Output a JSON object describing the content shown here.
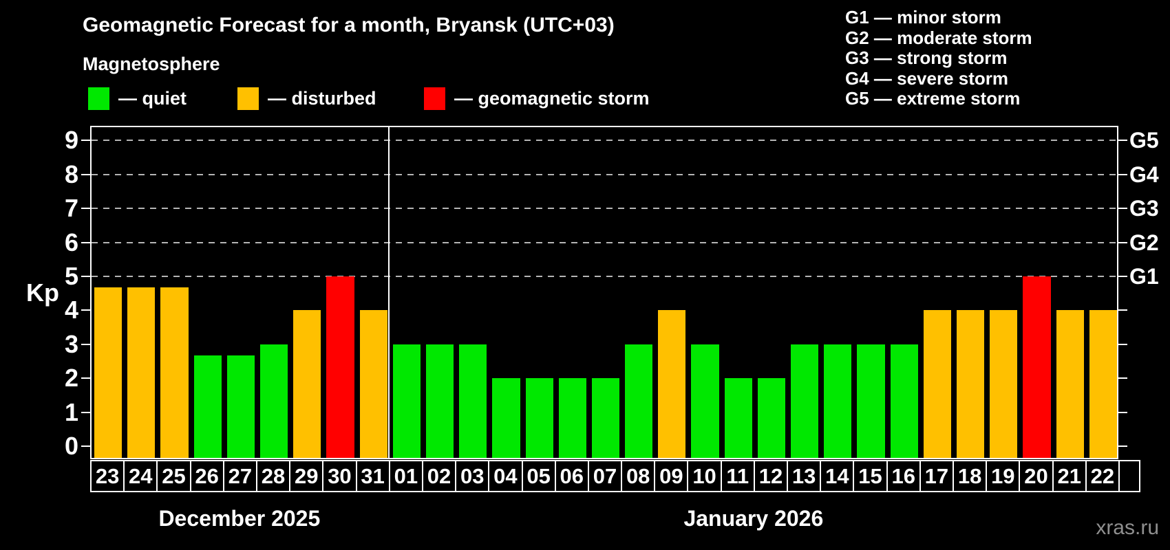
{
  "header": {
    "title": "Geomagnetic Forecast for a month, Bryansk (UTC+03)",
    "subtitle": "Magnetosphere",
    "legend": [
      {
        "name": "quiet",
        "color": "#00e800",
        "label": "— quiet"
      },
      {
        "name": "disturbed",
        "color": "#ffc000",
        "label": "— disturbed"
      },
      {
        "name": "storm",
        "color": "#ff0000",
        "label": "— geomagnetic storm"
      }
    ],
    "g_scale_legend": [
      "G1 — minor storm",
      "G2 — moderate storm",
      "G3 — strong storm",
      "G4 — severe storm",
      "G5 — extreme storm"
    ]
  },
  "chart_data": {
    "type": "bar",
    "title": "Geomagnetic Forecast for a month, Bryansk (UTC+03)",
    "subtitle": "Magnetosphere",
    "ylabel": "Kp",
    "ylim": [
      0,
      9.4
    ],
    "y_ticks": [
      0,
      1,
      2,
      3,
      4,
      5,
      6,
      7,
      8,
      9
    ],
    "gridlines_at": [
      5,
      6,
      7,
      8,
      9
    ],
    "grid_style": "dashed horizontal lines at Kp 5-9 (storm levels G1-G5)",
    "legend_position": "top-left",
    "right_axis_labels": [
      {
        "kp": 5,
        "label": "G1"
      },
      {
        "kp": 6,
        "label": "G2"
      },
      {
        "kp": 7,
        "label": "G3"
      },
      {
        "kp": 8,
        "label": "G4"
      },
      {
        "kp": 9,
        "label": "G5"
      }
    ],
    "colors": {
      "quiet": "#00e800",
      "disturbed": "#ffc000",
      "storm": "#ff0000"
    },
    "months": [
      {
        "key": "dec",
        "label": "December 2025",
        "days": [
          {
            "date": "23",
            "kp": 4.67,
            "status": "disturbed"
          },
          {
            "date": "24",
            "kp": 4.67,
            "status": "disturbed"
          },
          {
            "date": "25",
            "kp": 4.67,
            "status": "disturbed"
          },
          {
            "date": "26",
            "kp": 2.67,
            "status": "quiet"
          },
          {
            "date": "27",
            "kp": 2.67,
            "status": "quiet"
          },
          {
            "date": "28",
            "kp": 3,
            "status": "quiet"
          },
          {
            "date": "29",
            "kp": 4,
            "status": "disturbed"
          },
          {
            "date": "30",
            "kp": 5,
            "status": "storm"
          },
          {
            "date": "31",
            "kp": 4,
            "status": "disturbed"
          }
        ]
      },
      {
        "key": "jan",
        "label": "January 2026",
        "days": [
          {
            "date": "01",
            "kp": 3,
            "status": "quiet"
          },
          {
            "date": "02",
            "kp": 3,
            "status": "quiet"
          },
          {
            "date": "03",
            "kp": 3,
            "status": "quiet"
          },
          {
            "date": "04",
            "kp": 2,
            "status": "quiet"
          },
          {
            "date": "05",
            "kp": 2,
            "status": "quiet"
          },
          {
            "date": "06",
            "kp": 2,
            "status": "quiet"
          },
          {
            "date": "07",
            "kp": 2,
            "status": "quiet"
          },
          {
            "date": "08",
            "kp": 3,
            "status": "quiet"
          },
          {
            "date": "09",
            "kp": 4,
            "status": "disturbed"
          },
          {
            "date": "10",
            "kp": 3,
            "status": "quiet"
          },
          {
            "date": "11",
            "kp": 2,
            "status": "quiet"
          },
          {
            "date": "12",
            "kp": 2,
            "status": "quiet"
          },
          {
            "date": "13",
            "kp": 3,
            "status": "quiet"
          },
          {
            "date": "14",
            "kp": 3,
            "status": "quiet"
          },
          {
            "date": "15",
            "kp": 3,
            "status": "quiet"
          },
          {
            "date": "16",
            "kp": 3,
            "status": "quiet"
          },
          {
            "date": "17",
            "kp": 4,
            "status": "disturbed"
          },
          {
            "date": "18",
            "kp": 4,
            "status": "disturbed"
          },
          {
            "date": "19",
            "kp": 4,
            "status": "disturbed"
          },
          {
            "date": "20",
            "kp": 5,
            "status": "storm"
          },
          {
            "date": "21",
            "kp": 4,
            "status": "disturbed"
          },
          {
            "date": "22",
            "kp": 4,
            "status": "disturbed"
          }
        ]
      }
    ]
  },
  "watermark": "xras.ru"
}
